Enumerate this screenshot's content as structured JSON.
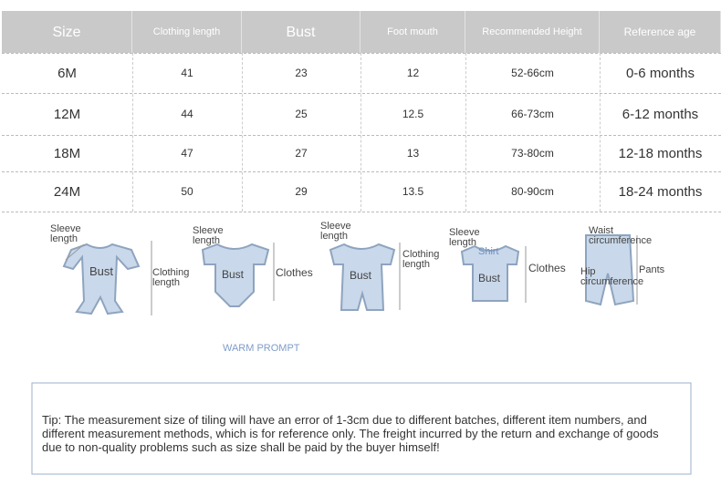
{
  "table": {
    "header": [
      "Size",
      "Clothing length",
      "Bust",
      "Foot mouth",
      "Recommended Height",
      "Reference age"
    ],
    "rows": [
      [
        "6M",
        41,
        23,
        12,
        "52-66cm",
        "0-6 months"
      ],
      [
        "12M",
        44,
        25,
        12.5,
        "66-73cm",
        "6-12 months"
      ],
      [
        "18M",
        47,
        27,
        13,
        "73-80cm",
        "12-18 months"
      ],
      [
        "24M",
        50,
        29,
        13.5,
        "80-90cm",
        "18-24 months"
      ]
    ]
  },
  "illustrations": [
    {
      "labels": [
        "Sleeve length",
        "Bust",
        "Clothing length"
      ]
    },
    {
      "labels": [
        "Sleeve length",
        "Bust",
        "Clothes"
      ]
    },
    {
      "labels": [
        "Sleeve length",
        "Bust",
        "Clothing length"
      ]
    },
    {
      "labels": [
        "Sleeve length",
        "Shirt",
        "Bust",
        "Clothes"
      ]
    },
    {
      "labels": [
        "Waist circumference",
        "Hip circumference",
        "Pants"
      ]
    }
  ],
  "warm_prompt": "WARM PROMPT",
  "tip": "Tip: The measurement size of tiling will have an error of 1-3cm due to different batches, different item numbers, and different measurement methods, which is for reference only. The freight incurred by the return and exchange of goods due to non-quality problems such as size shall be paid by the buyer himself!"
}
